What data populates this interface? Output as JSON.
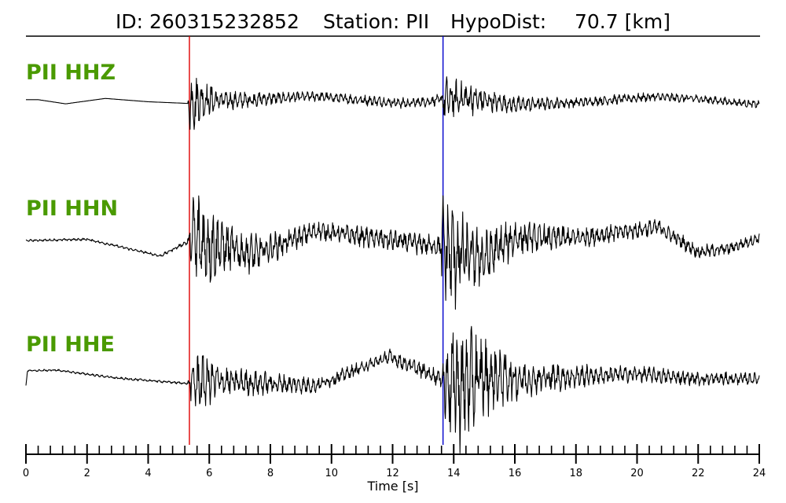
{
  "chart_data": {
    "type": "line",
    "title": {
      "id_label": "ID: 260315232852",
      "station_label": "Station: PII",
      "dist_label": "HypoDist:",
      "dist_value": "70.7 [km]"
    },
    "xlabel": "Time [s]",
    "xlim": [
      0,
      24
    ],
    "x_ticks": [
      0,
      2,
      4,
      6,
      8,
      10,
      12,
      14,
      16,
      18,
      20,
      22,
      24
    ],
    "x_tick_labels": [
      "0",
      "2",
      "4",
      "6",
      "8",
      "10",
      "12",
      "14",
      "16",
      "18",
      "20",
      "22",
      "24"
    ],
    "minor_tick_step": 0.4,
    "picks": [
      {
        "phase": "P",
        "time": 5.35,
        "color": "#e00000"
      },
      {
        "phase": "S",
        "time": 13.65,
        "color": "#0000cc"
      }
    ],
    "label_color": "#4a9a00",
    "trace_color": "#000000",
    "series": [
      {
        "name": "PII HHZ",
        "envelope": {
          "times": [
            0,
            5.3,
            5.4,
            5.6,
            6.5,
            9,
            13.6,
            13.7,
            14.2,
            15.5,
            18,
            24
          ],
          "amps": [
            0,
            0,
            9.5,
            5.5,
            2.2,
            1.2,
            1.3,
            5.5,
            4.5,
            2.2,
            1.2,
            0.9
          ]
        },
        "drift": {
          "times": [
            0,
            0.4,
            1.3,
            2.6,
            4,
            5.3,
            5.6,
            7,
            8,
            9.5,
            11,
            12.5,
            13.6,
            14.5,
            16,
            18,
            20.5,
            22,
            24
          ],
          "values": [
            0.6,
            0.6,
            -0.4,
            0.9,
            0.1,
            -0.3,
            0.5,
            0.4,
            0.9,
            1.4,
            0.5,
            -0.3,
            0.6,
            0.9,
            -0.6,
            -0.1,
            1.3,
            0.8,
            -0.6
          ]
        }
      },
      {
        "name": "PII HHN",
        "envelope": {
          "times": [
            0,
            2,
            4.3,
            5.2,
            5.35,
            5.5,
            6.5,
            8,
            9.5,
            12,
            13.5,
            13.65,
            13.9,
            14.5,
            15.5,
            16.5,
            19,
            24
          ],
          "amps": [
            0.15,
            0.2,
            0.2,
            0.3,
            1,
            8.5,
            4,
            2.2,
            1.4,
            1.7,
            1.5,
            8,
            9,
            5,
            3.5,
            2.2,
            1.4,
            0.8
          ]
        },
        "drift": {
          "times": [
            0,
            2,
            4.4,
            5.4,
            6.5,
            7.5,
            9.5,
            11.5,
            13.6,
            14,
            15,
            16,
            18,
            20.7,
            22,
            23,
            24
          ],
          "values": [
            0.1,
            0.3,
            -2.2,
            0.2,
            -0.9,
            -1.9,
            1.6,
            0.4,
            -0.8,
            -2,
            -2.5,
            0.5,
            0.5,
            2.1,
            -1.6,
            -1.1,
            0.5
          ]
        }
      },
      {
        "name": "PII HHE",
        "envelope": {
          "times": [
            0,
            0.1,
            5.3,
            5.4,
            5.6,
            6.5,
            9,
            10.5,
            13.6,
            13.7,
            14.2,
            15.2,
            16.5,
            19,
            24
          ],
          "amps": [
            0,
            0.15,
            0.2,
            2.5,
            4.5,
            2.2,
            1.3,
            1,
            1.3,
            7,
            10,
            5,
            2.5,
            1.3,
            0.9
          ]
        },
        "drift": {
          "times": [
            0,
            0.05,
            1,
            3,
            5.3,
            6,
            7.5,
            9.5,
            11.9,
            13.6,
            14.2,
            15,
            16.5,
            18.5,
            20,
            22,
            24
          ],
          "values": [
            -1,
            1.2,
            1.3,
            0.1,
            -0.7,
            -0.3,
            -0.6,
            -1,
            3.3,
            0,
            -1,
            0.2,
            0,
            0.5,
            0.7,
            0,
            0
          ]
        }
      }
    ]
  }
}
